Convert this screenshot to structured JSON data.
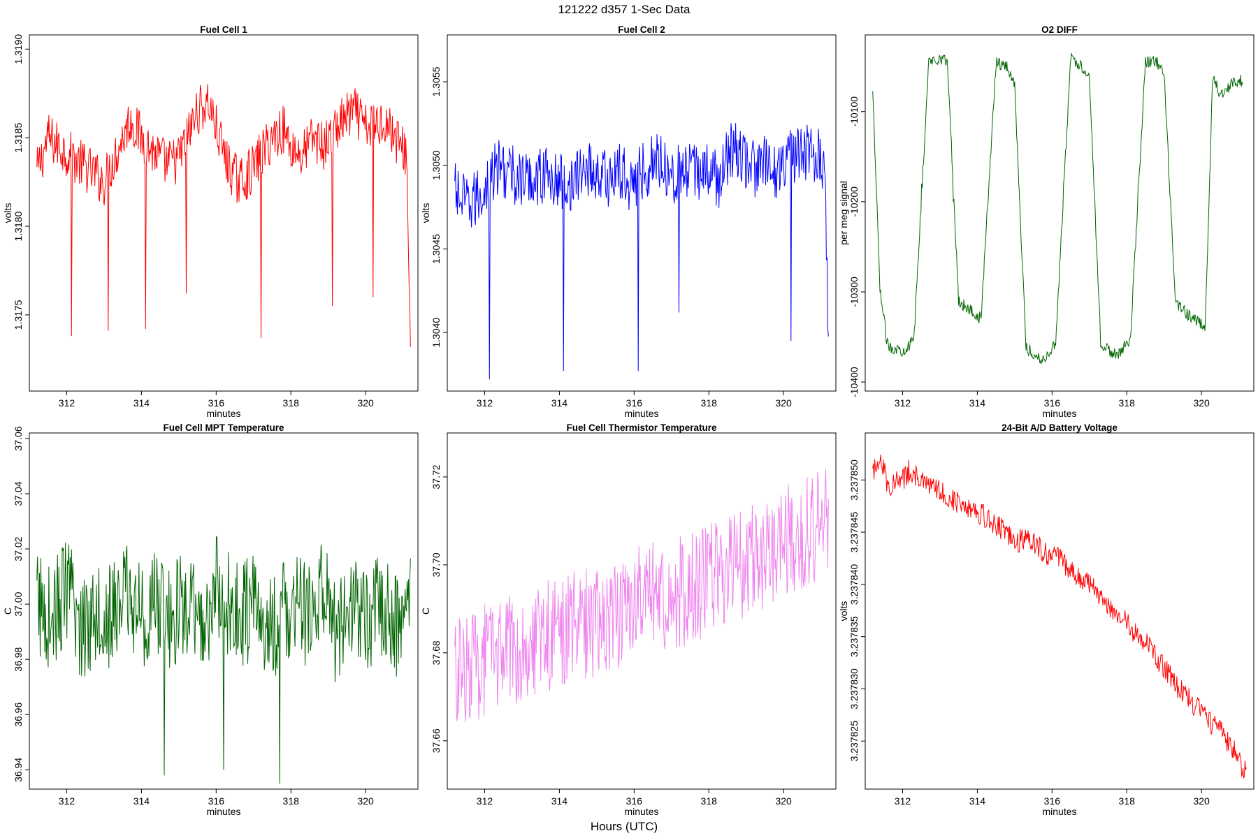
{
  "figure": {
    "title": "121222   d357   1-Sec Data",
    "footer_label": "Hours (UTC)"
  },
  "chart_data": [
    {
      "type": "line",
      "title": "Fuel Cell 1",
      "xlabel": "minutes",
      "ylabel": "volts",
      "color": "#ff0000",
      "xlim": [
        311.0,
        321.4
      ],
      "ylim": [
        1.31707,
        1.31908
      ],
      "xticks": [
        312,
        314,
        316,
        318,
        320
      ],
      "xtick_labels": [
        "312",
        "314",
        "316",
        "318",
        "320"
      ],
      "yticks": [
        1.3175,
        1.318,
        1.3185,
        1.319
      ],
      "ytick_labels": [
        "1.3175",
        "1.3180",
        "1.3185",
        "1.3190"
      ],
      "series": [
        {
          "x": [
            311.2,
            311.5,
            311.8,
            312.1,
            312.12,
            312.4,
            312.7,
            313.0,
            313.1,
            313.4,
            313.7,
            314.0,
            314.1,
            314.4,
            314.7,
            315.0,
            315.2,
            315.5,
            315.8,
            316.0,
            316.3,
            316.6,
            316.9,
            317.2,
            317.5,
            317.8,
            318.0,
            318.3,
            318.6,
            318.9,
            319.1,
            319.4,
            319.7,
            320.0,
            320.2,
            320.5,
            320.8,
            321.1,
            321.2
          ],
          "y": [
            1.3183,
            1.3185,
            1.31845,
            1.3184,
            1.31738,
            1.31835,
            1.3183,
            1.31825,
            1.31741,
            1.31845,
            1.3186,
            1.3185,
            1.31742,
            1.3184,
            1.31835,
            1.31838,
            1.31762,
            1.31865,
            1.3187,
            1.31855,
            1.31835,
            1.31825,
            1.3183,
            1.31737,
            1.3185,
            1.31855,
            1.31845,
            1.3184,
            1.3185,
            1.31845,
            1.31755,
            1.3186,
            1.31865,
            1.31855,
            1.3176,
            1.3186,
            1.3185,
            1.3184,
            1.3173
          ]
        }
      ]
    },
    {
      "type": "line",
      "title": "Fuel Cell 2",
      "xlabel": "minutes",
      "ylabel": "volts",
      "color": "#0000ff",
      "xlim": [
        311.0,
        321.4
      ],
      "ylim": [
        1.30365,
        1.30578
      ],
      "xticks": [
        312,
        314,
        316,
        318,
        320
      ],
      "xtick_labels": [
        "312",
        "314",
        "316",
        "318",
        "320"
      ],
      "yticks": [
        1.304,
        1.3045,
        1.305,
        1.3055
      ],
      "ytick_labels": [
        "1.3040",
        "1.3045",
        "1.3050",
        "1.3055"
      ],
      "series": [
        {
          "x": [
            311.2,
            311.5,
            311.8,
            312.1,
            312.12,
            312.4,
            312.7,
            313.0,
            313.3,
            313.6,
            313.9,
            314.1,
            314.4,
            314.7,
            315.0,
            315.3,
            315.6,
            315.9,
            316.1,
            316.4,
            316.7,
            317.0,
            317.2,
            317.5,
            317.8,
            318.0,
            318.3,
            318.6,
            318.9,
            319.2,
            319.5,
            319.8,
            320.0,
            320.2,
            320.5,
            320.8,
            321.1,
            321.2
          ],
          "y": [
            1.30485,
            1.30475,
            1.3048,
            1.3049,
            1.30372,
            1.305,
            1.30495,
            1.3049,
            1.30492,
            1.30495,
            1.3049,
            1.30377,
            1.3049,
            1.305,
            1.30495,
            1.30492,
            1.30496,
            1.3049,
            1.30377,
            1.305,
            1.30505,
            1.30495,
            1.30412,
            1.30495,
            1.30498,
            1.30495,
            1.30492,
            1.3051,
            1.30505,
            1.30498,
            1.305,
            1.30496,
            1.30505,
            1.30395,
            1.30505,
            1.30508,
            1.305,
            1.30403
          ]
        }
      ]
    },
    {
      "type": "line",
      "title": "O2 DIFF",
      "xlabel": "minutes",
      "ylabel": "per meg signal",
      "color": "#006400",
      "xlim": [
        311.0,
        321.4
      ],
      "ylim": [
        -10410,
        -10015
      ],
      "xticks": [
        312,
        314,
        316,
        318,
        320
      ],
      "xtick_labels": [
        "312",
        "314",
        "316",
        "318",
        "320"
      ],
      "yticks": [
        -10400,
        -10300,
        -10200,
        -10100
      ],
      "ytick_labels": [
        "-10400",
        "-10300",
        "-10200",
        "-10100"
      ],
      "series": [
        {
          "x": [
            311.2,
            311.4,
            311.6,
            312.0,
            312.3,
            312.5,
            312.7,
            313.0,
            313.2,
            313.35,
            313.5,
            313.8,
            314.1,
            314.3,
            314.5,
            314.8,
            315.0,
            315.3,
            315.5,
            315.8,
            316.1,
            316.3,
            316.5,
            316.8,
            317.0,
            317.3,
            317.5,
            317.8,
            318.1,
            318.3,
            318.5,
            318.8,
            319.0,
            319.3,
            319.5,
            319.8,
            320.1,
            320.3,
            320.5,
            320.8,
            321.1
          ],
          "y": [
            -10080,
            -10300,
            -10360,
            -10365,
            -10355,
            -10180,
            -10045,
            -10040,
            -10045,
            -10200,
            -10310,
            -10320,
            -10330,
            -10180,
            -10045,
            -10050,
            -10070,
            -10360,
            -10370,
            -10375,
            -10355,
            -10180,
            -10040,
            -10050,
            -10060,
            -10355,
            -10365,
            -10370,
            -10350,
            -10180,
            -10045,
            -10045,
            -10060,
            -10310,
            -10320,
            -10330,
            -10340,
            -10060,
            -10080,
            -10070,
            -10065
          ]
        }
      ]
    },
    {
      "type": "line",
      "title": "Fuel Cell MPT Temperature",
      "xlabel": "minutes",
      "ylabel": "C",
      "color": "#006400",
      "xlim": [
        311.0,
        321.4
      ],
      "ylim": [
        36.933,
        37.062
      ],
      "xticks": [
        312,
        314,
        316,
        318,
        320
      ],
      "xtick_labels": [
        "312",
        "314",
        "316",
        "318",
        "320"
      ],
      "yticks": [
        36.94,
        36.96,
        36.98,
        37.0,
        37.02,
        37.04,
        37.06
      ],
      "ytick_labels": [
        "36.94",
        "36.96",
        "36.98",
        "37.00",
        "37.02",
        "37.04",
        "37.06"
      ],
      "series": [
        {
          "x": [
            311.2,
            311.6,
            312.0,
            312.4,
            312.8,
            313.2,
            313.6,
            314.0,
            314.4,
            314.6,
            314.8,
            315.2,
            315.6,
            316.0,
            316.2,
            316.6,
            317.0,
            317.4,
            317.7,
            318.0,
            318.4,
            318.8,
            319.2,
            319.6,
            320.0,
            320.4,
            320.8,
            321.2
          ],
          "y": [
            37.0,
            36.995,
            37.005,
            36.99,
            37.0,
            36.995,
            37.005,
            36.995,
            37.0,
            36.938,
            36.995,
            37.0,
            36.99,
            37.005,
            36.94,
            36.995,
            37.0,
            36.99,
            36.935,
            37.0,
            36.995,
            37.005,
            36.99,
            37.0,
            36.995,
            37.0,
            36.992,
            37.0
          ]
        }
      ]
    },
    {
      "type": "line",
      "title": "Fuel Cell Thermistor Temperature",
      "xlabel": "minutes",
      "ylabel": "C",
      "color": "#ee82ee",
      "xlim": [
        311.0,
        321.4
      ],
      "ylim": [
        37.649,
        37.73
      ],
      "xticks": [
        312,
        314,
        316,
        318,
        320
      ],
      "xtick_labels": [
        "312",
        "314",
        "316",
        "318",
        "320"
      ],
      "yticks": [
        37.66,
        37.68,
        37.7,
        37.72
      ],
      "ytick_labels": [
        "37.66",
        "37.68",
        "37.70",
        "37.72"
      ],
      "series": [
        {
          "x": [
            311.2,
            311.6,
            312.0,
            312.4,
            312.8,
            313.2,
            313.6,
            314.0,
            314.4,
            314.8,
            315.2,
            315.6,
            316.0,
            316.4,
            316.8,
            317.2,
            317.6,
            318.0,
            318.4,
            318.8,
            319.2,
            319.6,
            320.0,
            320.4,
            320.8,
            321.2
          ],
          "y": [
            37.675,
            37.677,
            37.678,
            37.68,
            37.681,
            37.683,
            37.684,
            37.685,
            37.686,
            37.687,
            37.688,
            37.689,
            37.691,
            37.692,
            37.693,
            37.694,
            37.695,
            37.697,
            37.698,
            37.7,
            37.702,
            37.703,
            37.705,
            37.706,
            37.708,
            37.71
          ]
        }
      ]
    },
    {
      "type": "line",
      "title": "24-Bit A/D Battery Voltage",
      "xlabel": "minutes",
      "ylabel": "volts",
      "color": "#ff0000",
      "xlim": [
        311.0,
        321.4
      ],
      "ylim": [
        3.2378204,
        3.2378545
      ],
      "xticks": [
        312,
        314,
        316,
        318,
        320
      ],
      "xtick_labels": [
        "312",
        "314",
        "316",
        "318",
        "320"
      ],
      "yticks": [
        3.237825,
        3.23783,
        3.237835,
        3.23784,
        3.237845,
        3.23785
      ],
      "ytick_labels": [
        "3.237825",
        "3.237830",
        "3.237835",
        "3.237840",
        "3.237845",
        "3.237850"
      ],
      "series": [
        {
          "x": [
            311.2,
            311.4,
            311.6,
            312.0,
            312.2,
            312.6,
            313.0,
            313.4,
            313.8,
            314.2,
            314.6,
            315.0,
            315.4,
            315.8,
            316.2,
            316.6,
            317.0,
            317.4,
            317.8,
            318.2,
            318.6,
            319.0,
            319.4,
            319.8,
            320.2,
            320.6,
            321.0,
            321.1,
            321.2
          ],
          "y": [
            3.2378505,
            3.2378525,
            3.2378495,
            3.23785,
            3.237851,
            3.2378495,
            3.237849,
            3.237848,
            3.2378475,
            3.2378465,
            3.2378455,
            3.237844,
            3.2378445,
            3.237843,
            3.2378425,
            3.237841,
            3.23784,
            3.2378385,
            3.237837,
            3.2378355,
            3.237834,
            3.237832,
            3.23783,
            3.2378285,
            3.237827,
            3.2378255,
            3.2378235,
            3.2378215,
            3.2378225
          ]
        }
      ]
    }
  ]
}
